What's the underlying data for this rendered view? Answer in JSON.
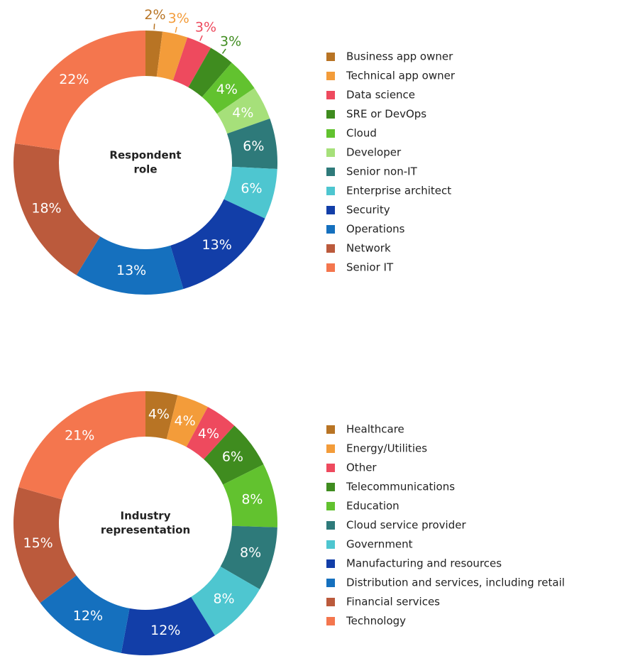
{
  "chart_data": [
    {
      "type": "donut",
      "center_label": [
        "Respondent",
        "role"
      ],
      "categories": [
        "Business app owner",
        "Technical app owner",
        "Data science",
        "SRE or DevOps",
        "Cloud",
        "Developer",
        "Senior non-IT",
        "Enterprise architect",
        "Security",
        "Operations",
        "Network",
        "Senior IT"
      ],
      "values": [
        2,
        3,
        3,
        3,
        4,
        4,
        6,
        6,
        13,
        13,
        18,
        22
      ],
      "value_labels": [
        "2%",
        "3%",
        "3%",
        "3%",
        "4%",
        "4%",
        "6%",
        "6%",
        "13%",
        "13%",
        "18%",
        "22%"
      ],
      "colors": [
        "#b87424",
        "#f39c3a",
        "#ee4a5e",
        "#3f8c1f",
        "#62c22f",
        "#a6e07a",
        "#2e7a7a",
        "#4ec6d0",
        "#123ea8",
        "#1570be",
        "#bb5a3c",
        "#f4764e"
      ]
    },
    {
      "type": "donut",
      "center_label": [
        "Industry",
        "representation"
      ],
      "categories": [
        "Healthcare",
        "Energy/Utilities",
        "Other",
        "Telecommunications",
        "Education",
        "Cloud service provider",
        "Government",
        "Manufacturing and resources",
        "Distribution and services, including retail",
        "Financial services",
        "Technology"
      ],
      "values": [
        4,
        4,
        4,
        6,
        8,
        8,
        8,
        12,
        12,
        15,
        21
      ],
      "value_labels": [
        "4%",
        "4%",
        "4%",
        "6%",
        "8%",
        "8%",
        "8%",
        "12%",
        "12%",
        "15%",
        "21%"
      ],
      "colors": [
        "#b87424",
        "#f39c3a",
        "#ee4a5e",
        "#3f8c1f",
        "#62c22f",
        "#2e7a7a",
        "#4ec6d0",
        "#123ea8",
        "#1570be",
        "#bb5a3c",
        "#f4764e"
      ]
    }
  ]
}
